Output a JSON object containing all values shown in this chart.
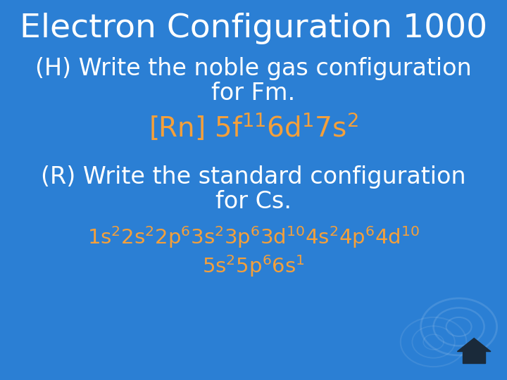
{
  "bg_color": "#2b7fd4",
  "title": "Electron Configuration 1000",
  "title_color": "#ffffff",
  "title_fontsize": 34,
  "body_color": "#ffffff",
  "answer_color": "#f5a03a",
  "line1": "(H) Write the noble gas configuration",
  "line2": "for Fm.",
  "line_r1": "(R) Write the standard configuration",
  "line_r2": "for Cs.",
  "font_size_body": 24,
  "font_size_answer": 28,
  "font_size_cs": 21
}
